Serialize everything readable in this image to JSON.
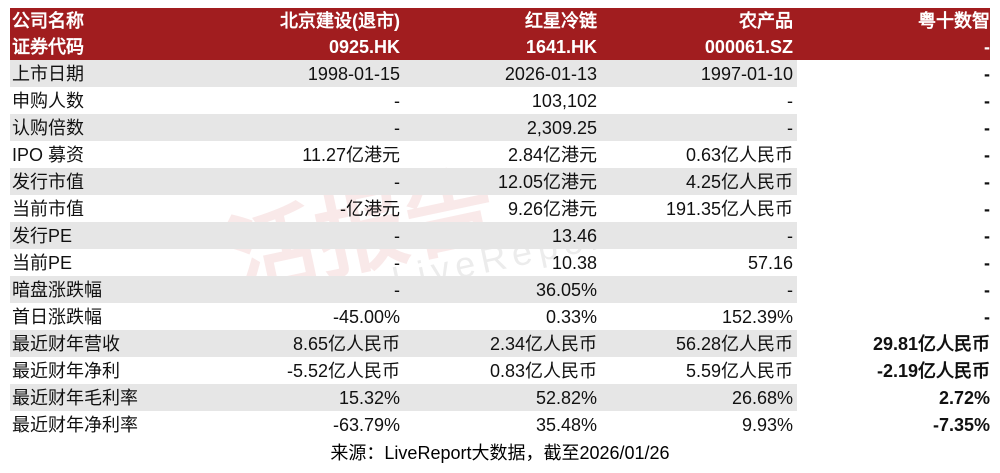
{
  "table": {
    "header": [
      [
        "公司名称",
        "北京建设(退市)",
        "红星冷链",
        "农产品",
        "粤十数智"
      ],
      [
        "证券代码",
        "0925.HK",
        "1641.HK",
        "000061.SZ",
        "-"
      ]
    ],
    "rows": [
      [
        "上市日期",
        "1998-01-15",
        "2026-01-13",
        "1997-01-10",
        "-"
      ],
      [
        "申购人数",
        "-",
        "103,102",
        "-",
        "-"
      ],
      [
        "认购倍数",
        "-",
        "2,309.25",
        "-",
        "-"
      ],
      [
        "IPO 募资",
        "11.27亿港元",
        "2.84亿港元",
        "0.63亿人民币",
        "-"
      ],
      [
        "发行市值",
        "-",
        "12.05亿港元",
        "4.25亿人民币",
        "-"
      ],
      [
        "当前市值",
        "-亿港元",
        "9.26亿港元",
        "191.35亿人民币",
        "-"
      ],
      [
        "发行PE",
        "-",
        "13.46",
        "-",
        "-"
      ],
      [
        "当前PE",
        "-",
        "10.38",
        "57.16",
        "-"
      ],
      [
        "暗盘涨跌幅",
        "-",
        "36.05%",
        "-",
        "-"
      ],
      [
        "首日涨跌幅",
        "-45.00%",
        "0.33%",
        "152.39%",
        "-"
      ],
      [
        "最近财年营收",
        "8.65亿人民币",
        "2.34亿人民币",
        "56.28亿人民币",
        "29.81亿人民币"
      ],
      [
        "最近财年净利",
        "-5.52亿人民币",
        "0.83亿人民币",
        "5.59亿人民币",
        "-2.19亿人民币"
      ],
      [
        "最近财年毛利率",
        "15.32%",
        "52.82%",
        "26.68%",
        "2.72%"
      ],
      [
        "最近财年净利率",
        "-63.79%",
        "35.48%",
        "9.93%",
        "-7.35%"
      ]
    ]
  },
  "watermark": {
    "main": "活报告",
    "sub": "LiveReport"
  },
  "source": "来源：LiveReport大数据，截至2026/01/26"
}
